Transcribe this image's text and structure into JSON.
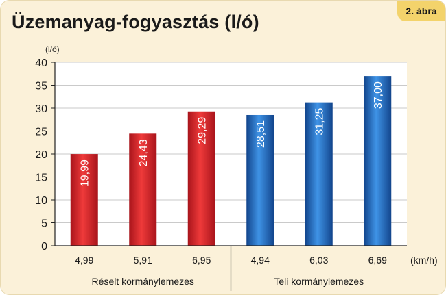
{
  "title": "Üzemanyag-fogyasztás (l/ó)",
  "badge": "2. ábra",
  "chart_data": {
    "type": "bar",
    "title": "Üzemanyag-fogyasztás (l/ó)",
    "ylabel": "(l/ó)",
    "xlabel": "(km/h)",
    "ylim": [
      0,
      40
    ],
    "yticks": [
      0,
      5,
      10,
      15,
      20,
      25,
      30,
      35,
      40
    ],
    "grid": true,
    "groups": [
      {
        "name": "Réselt kormánylemezes",
        "categories": [
          "4,99",
          "5,91",
          "6,95"
        ],
        "values": [
          19.99,
          24.43,
          29.29
        ],
        "labels": [
          "19,99",
          "24,43",
          "29,29"
        ],
        "color": "#d8262c"
      },
      {
        "name": "Teli kormánylemezes",
        "categories": [
          "4,94",
          "6,03",
          "6,69"
        ],
        "values": [
          28.51,
          31.25,
          37.0
        ],
        "labels": [
          "28,51",
          "31,25",
          "37,00"
        ],
        "color": "#1f6fc0"
      }
    ]
  }
}
